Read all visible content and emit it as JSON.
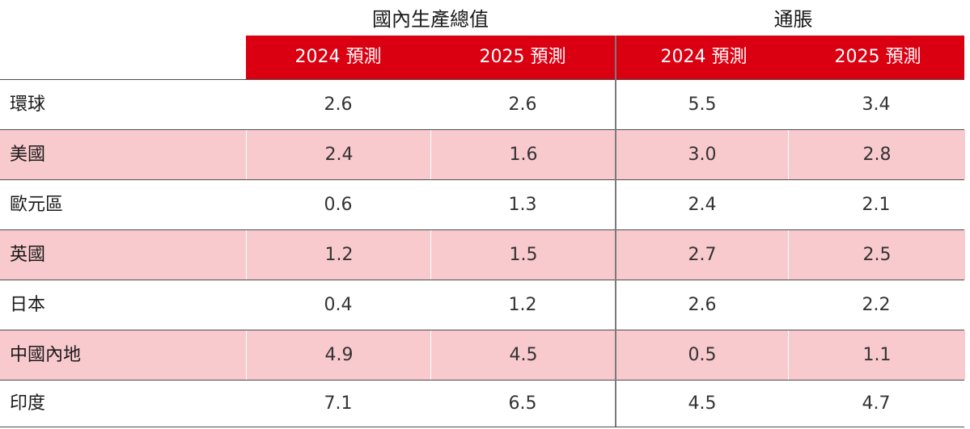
{
  "groups": {
    "gdp": "國內生產總值",
    "inflation": "通脹"
  },
  "columns": [
    "2024 預測",
    "2025 預測",
    "2024 預測",
    "2025 預測"
  ],
  "rows": [
    {
      "label": "環球",
      "values": [
        "2.6",
        "2.6",
        "5.5",
        "3.4"
      ]
    },
    {
      "label": "美國",
      "values": [
        "2.4",
        "1.6",
        "3.0",
        "2.8"
      ]
    },
    {
      "label": "歐元區",
      "values": [
        "0.6",
        "1.3",
        "2.4",
        "2.1"
      ]
    },
    {
      "label": "英國",
      "values": [
        "1.2",
        "1.5",
        "2.7",
        "2.5"
      ]
    },
    {
      "label": "日本",
      "values": [
        "0.4",
        "1.2",
        "2.6",
        "2.2"
      ]
    },
    {
      "label": "中國內地",
      "values": [
        "4.9",
        "4.5",
        "0.5",
        "1.1"
      ]
    },
    {
      "label": "印度",
      "values": [
        "7.1",
        "6.5",
        "4.5",
        "4.7"
      ]
    }
  ],
  "colors": {
    "header_bg": "#db0011",
    "shaded_row_bg": "#f8c9cd",
    "header_text": "#ffffff"
  }
}
